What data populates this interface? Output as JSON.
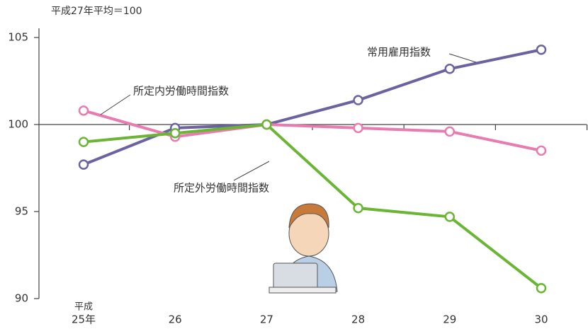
{
  "chart_data": {
    "type": "line",
    "subtitle": "平成27年平均＝100",
    "x_era_label": "平成",
    "categories": [
      "25年",
      "26",
      "27",
      "28",
      "29",
      "30"
    ],
    "series": [
      {
        "name": "常用雇用指数",
        "color": "#6b63a0",
        "values": [
          97.7,
          99.8,
          100,
          101.4,
          103.2,
          104.3
        ]
      },
      {
        "name": "所定内労働時間指数",
        "color": "#e87bb0",
        "values": [
          100.8,
          99.3,
          100,
          99.8,
          99.6,
          98.5
        ]
      },
      {
        "name": "所定外労働時間指数",
        "color": "#6ab634",
        "values": [
          99.0,
          99.5,
          100,
          95.2,
          94.7,
          90.6
        ]
      }
    ],
    "ylim": [
      90,
      105
    ],
    "yticks": [
      90,
      95,
      100,
      105
    ],
    "x_axis_crossing": 100
  }
}
